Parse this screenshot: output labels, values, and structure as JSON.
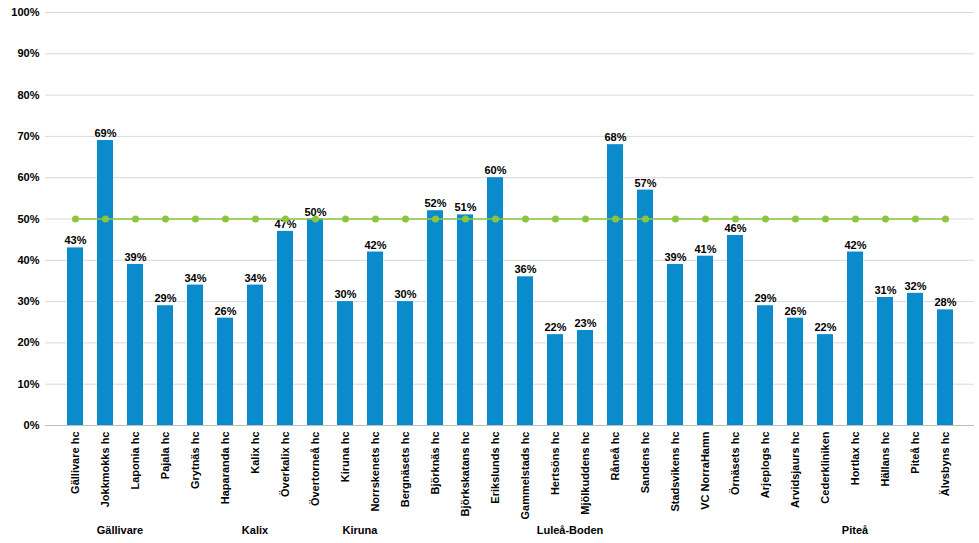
{
  "chart_data": {
    "type": "bar",
    "categories": [
      "Gällivare hc",
      "Jokkmokks hc",
      "Laponia hc",
      "Pajala hc",
      "Grytnäs hc",
      "Haparanda hc",
      "Kalix hc",
      "Överkalix hc",
      "Övertorneå hc",
      "Kiruna hc",
      "Norrskenets hc",
      "Bergnäsets hc",
      "Björknäs hc",
      "Björkskatans hc",
      "Erikslunds hc",
      "Gammelstads hc",
      "Hertsöns hc",
      "Mjölkuddens hc",
      "Råneå hc",
      "Sandens hc",
      "Stadsvikens hc",
      "VC NorraHamn",
      "Örnäsets hc",
      "Arjeplogs hc",
      "Arvidsjaurs hc",
      "Cederkliniken",
      "Hortlax hc",
      "Hällans hc",
      "Piteå hc",
      "Älvsbyns hc"
    ],
    "groups": [
      "Gällivare",
      "Gällivare",
      "Gällivare",
      "Gällivare",
      "Kalix",
      "Kalix",
      "Kalix",
      "Kalix",
      "Kalix",
      "Kiruna",
      "Kiruna",
      "Luleå-Boden",
      "Luleå-Boden",
      "Luleå-Boden",
      "Luleå-Boden",
      "Luleå-Boden",
      "Luleå-Boden",
      "Luleå-Boden",
      "Luleå-Boden",
      "Luleå-Boden",
      "Luleå-Boden",
      "Luleå-Boden",
      "Luleå-Boden",
      "Piteå",
      "Piteå",
      "Piteå",
      "Piteå",
      "Piteå",
      "Piteå",
      "Piteå"
    ],
    "series": [
      {
        "type": "bar",
        "color": "#0a8bcc",
        "data_labels": true,
        "values": [
          43,
          69,
          39,
          29,
          34,
          26,
          34,
          47,
          50,
          30,
          42,
          30,
          52,
          51,
          60,
          36,
          22,
          23,
          68,
          57,
          39,
          41,
          46,
          29,
          26,
          22,
          42,
          31,
          32,
          28
        ],
        "value_labels": [
          "43%",
          "69%",
          "39%",
          "29%",
          "34%",
          "26%",
          "34%",
          "47%",
          "50%",
          "30%",
          "42%",
          "30%",
          "52%",
          "51%",
          "60%",
          "36%",
          "22%",
          "23%",
          "68%",
          "57%",
          "39%",
          "41%",
          "46%",
          "29%",
          "26%",
          "22%",
          "42%",
          "31%",
          "32%",
          "28%"
        ]
      },
      {
        "type": "line",
        "color": "#8cc63e",
        "marker": "circle",
        "values": [
          50,
          50,
          50,
          50,
          50,
          50,
          50,
          50,
          50,
          50,
          50,
          50,
          50,
          50,
          50,
          50,
          50,
          50,
          50,
          50,
          50,
          50,
          50,
          50,
          50,
          50,
          50,
          50,
          50,
          50
        ]
      }
    ],
    "ylim": [
      0,
      100
    ],
    "yticks": [
      {
        "value": 0,
        "label": "0%"
      },
      {
        "value": 10,
        "label": "10%"
      },
      {
        "value": 20,
        "label": "20%"
      },
      {
        "value": 30,
        "label": "30%"
      },
      {
        "value": 40,
        "label": "40%"
      },
      {
        "value": 50,
        "label": "50%"
      },
      {
        "value": 60,
        "label": "60%"
      },
      {
        "value": 70,
        "label": "70%"
      },
      {
        "value": 80,
        "label": "80%"
      },
      {
        "value": 90,
        "label": "90%"
      },
      {
        "value": 100,
        "label": "100%"
      }
    ],
    "grid": true
  }
}
